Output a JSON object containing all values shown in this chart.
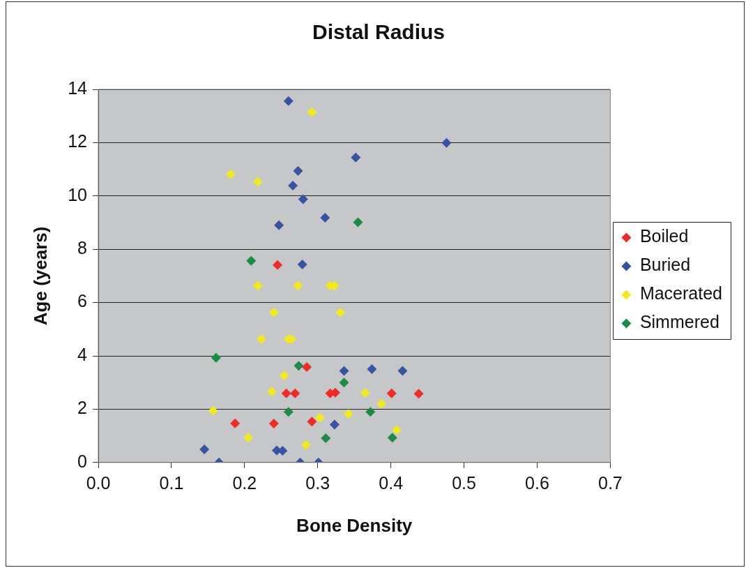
{
  "chart_data": {
    "type": "scatter",
    "title": "Distal Radius",
    "xlabel": "Bone Density",
    "ylabel": "Age (years)",
    "xlim": [
      0,
      0.7
    ],
    "ylim": [
      0,
      14
    ],
    "xticks": [
      {
        "value": 0,
        "label": "0.0"
      },
      {
        "value": 0.1,
        "label": "0.1"
      },
      {
        "value": 0.2,
        "label": "0.2"
      },
      {
        "value": 0.3,
        "label": "0.3"
      },
      {
        "value": 0.4,
        "label": "0.4"
      },
      {
        "value": 0.5,
        "label": "0.5"
      },
      {
        "value": 0.6,
        "label": "0.6"
      },
      {
        "value": 0.7,
        "label": "0.7"
      }
    ],
    "yticks": [
      0,
      2,
      4,
      6,
      8,
      10,
      12,
      14
    ],
    "grid": "y",
    "legend": "right",
    "marker": "diamond",
    "series": [
      {
        "name": "Boiled",
        "color": "#ee2b24",
        "x": [
          0.245,
          0.285,
          0.257,
          0.269,
          0.317,
          0.324,
          0.401,
          0.438,
          0.187,
          0.24,
          0.292
        ],
        "values": [
          7.41,
          3.58,
          2.59,
          2.59,
          2.59,
          2.62,
          2.59,
          2.58,
          1.47,
          1.46,
          1.53
        ]
      },
      {
        "name": "Buried",
        "color": "#3753a4",
        "x": [
          0.26,
          0.476,
          0.352,
          0.273,
          0.266,
          0.28,
          0.31,
          0.247,
          0.279,
          0.336,
          0.374,
          0.416,
          0.323,
          0.145,
          0.244,
          0.252,
          0.165,
          0.276,
          0.301
        ],
        "values": [
          13.56,
          11.99,
          11.44,
          10.94,
          10.39,
          9.88,
          9.18,
          8.9,
          7.43,
          3.44,
          3.5,
          3.44,
          1.42,
          0.49,
          0.45,
          0.44,
          0,
          0,
          0
        ]
      },
      {
        "name": "Macerated",
        "color": "#f1ea1f",
        "x": [
          0.292,
          0.181,
          0.218,
          0.218,
          0.273,
          0.317,
          0.323,
          0.24,
          0.331,
          0.223,
          0.26,
          0.264,
          0.254,
          0.237,
          0.365,
          0.387,
          0.157,
          0.342,
          0.303,
          0.408,
          0.205,
          0.284
        ],
        "values": [
          13.14,
          10.81,
          10.53,
          6.63,
          6.63,
          6.63,
          6.63,
          5.63,
          5.63,
          4.63,
          4.63,
          4.63,
          3.26,
          2.66,
          2.61,
          2.2,
          1.94,
          1.82,
          1.68,
          1.22,
          0.93,
          0.66
        ]
      },
      {
        "name": "Simmered",
        "color": "#1a8c44",
        "x": [
          0.355,
          0.209,
          0.161,
          0.274,
          0.336,
          0.26,
          0.372,
          0.311,
          0.402
        ],
        "values": [
          9.01,
          7.57,
          3.93,
          3.63,
          3.0,
          1.9,
          1.9,
          0.91,
          0.93
        ]
      }
    ]
  }
}
